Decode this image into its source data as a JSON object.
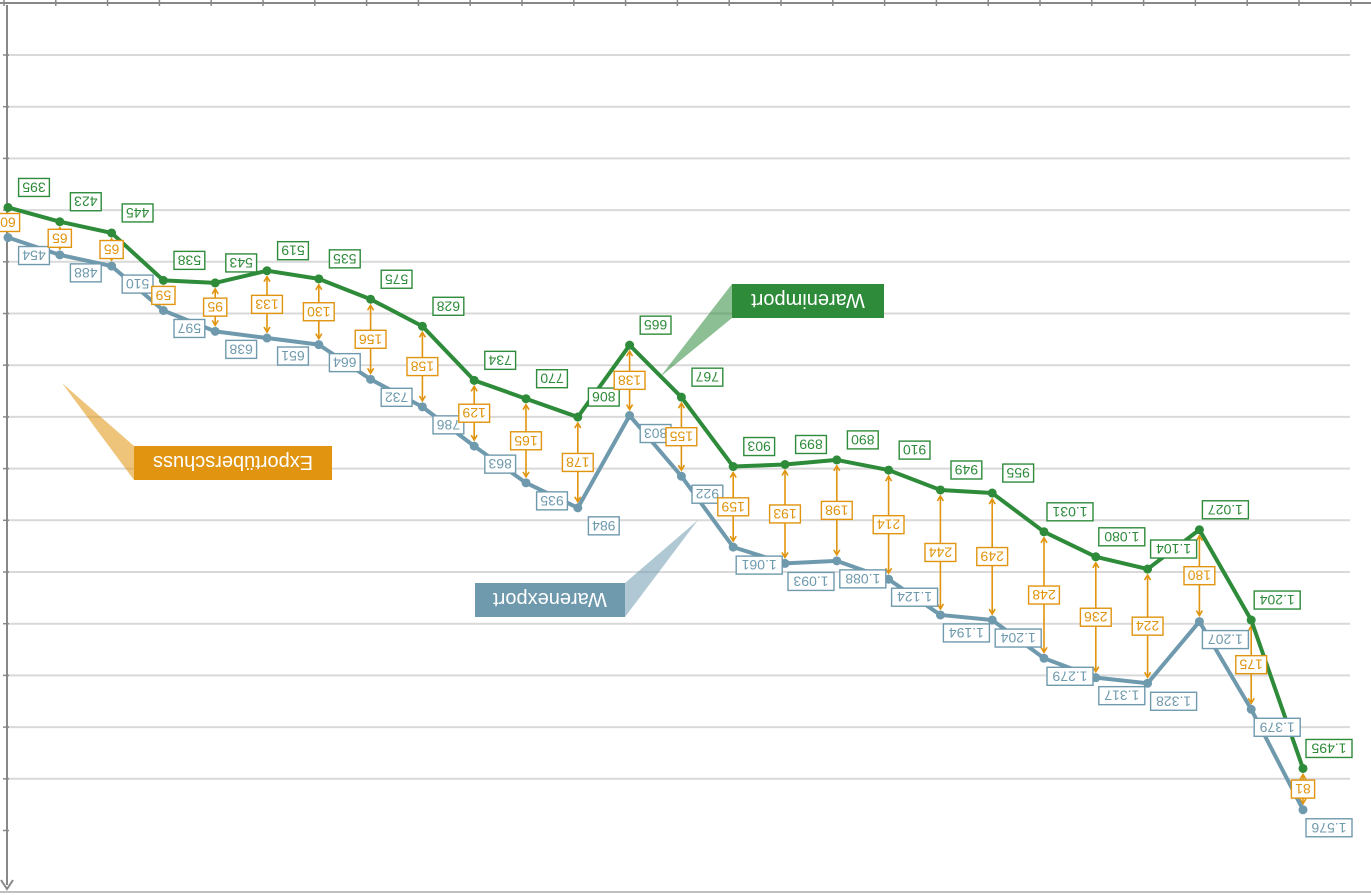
{
  "chart_data": {
    "type": "line",
    "orientation": "rotated 180°",
    "grid": true,
    "colors": {
      "import": "#2e8b3a",
      "export": "#6f9aae",
      "surplus": "#e0940f",
      "grid": "#d9d9d9"
    },
    "series": [
      {
        "key": "import",
        "name": "Warenimport",
        "labels": [
          "395",
          "423",
          "445",
          "538",
          "543",
          "519",
          "535",
          "575",
          "628",
          "734",
          "770",
          "806",
          "665",
          "767",
          "903",
          "899",
          "890",
          "910",
          "949",
          "955",
          "1.031",
          "1.080",
          "1.104",
          "1.027",
          "1.204",
          "1.495"
        ],
        "values": [
          395,
          423,
          445,
          538,
          543,
          519,
          535,
          575,
          628,
          734,
          770,
          806,
          665,
          767,
          903,
          899,
          890,
          910,
          949,
          955,
          1031,
          1080,
          1104,
          1027,
          1204,
          1495
        ]
      },
      {
        "key": "export",
        "name": "Warenexport",
        "labels": [
          "454",
          "488",
          "510",
          "597",
          "638",
          "651",
          "664",
          "732",
          "786",
          "863",
          "935",
          "984",
          "803",
          "922",
          "1.061",
          "1.093",
          "1.088",
          "1.124",
          "1.194",
          "1.204",
          "1.279",
          "1.317",
          "1.328",
          "1.207",
          "1.379",
          "1.576"
        ],
        "values": [
          454,
          488,
          510,
          597,
          638,
          651,
          664,
          732,
          786,
          863,
          935,
          984,
          803,
          922,
          1061,
          1093,
          1088,
          1124,
          1194,
          1204,
          1279,
          1317,
          1328,
          1207,
          1379,
          1576
        ]
      },
      {
        "key": "surplus",
        "name": "Exportüberschuss",
        "labels": [
          "60",
          "65",
          "65",
          "59",
          "95",
          "133",
          "130",
          "156",
          "158",
          "129",
          "165",
          "178",
          "138",
          "155",
          "159",
          "193",
          "198",
          "214",
          "244",
          "249",
          "248",
          "236",
          "224",
          "180",
          "175",
          "81"
        ],
        "values": [
          60,
          65,
          65,
          59,
          95,
          133,
          130,
          156,
          158,
          129,
          165,
          178,
          138,
          155,
          159,
          193,
          198,
          214,
          244,
          249,
          248,
          236,
          224,
          180,
          175,
          81
        ]
      }
    ]
  }
}
